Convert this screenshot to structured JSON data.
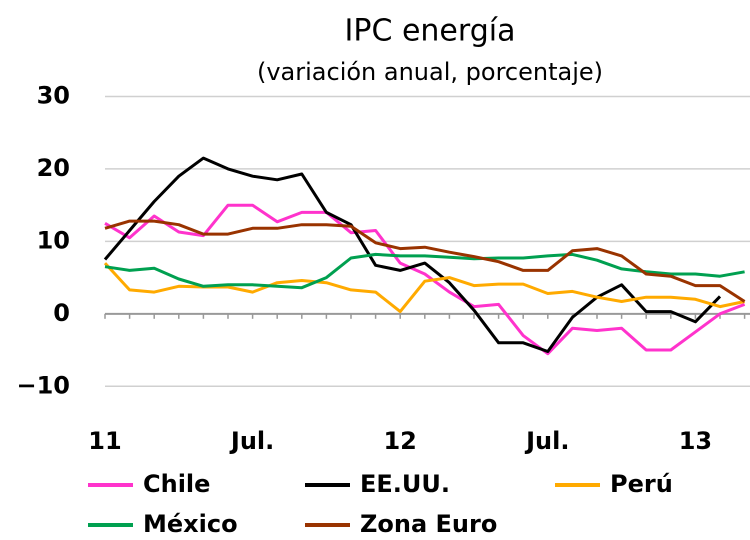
{
  "chart_data": {
    "type": "line",
    "title": "IPC energía",
    "subtitle": "(variación anual, porcentaje)",
    "categories": [
      "11",
      null,
      null,
      null,
      null,
      null,
      "Jul.",
      null,
      null,
      null,
      null,
      null,
      "12",
      null,
      null,
      null,
      null,
      null,
      "Jul.",
      null,
      null,
      null,
      null,
      null,
      "13",
      null,
      null
    ],
    "series": [
      {
        "name": "Chile",
        "color": "#ff33cc",
        "values": [
          12.5,
          10.5,
          13.5,
          11.3,
          10.8,
          15,
          15,
          12.7,
          14,
          14,
          11.2,
          11.5,
          7,
          5.5,
          3,
          1,
          1.3,
          -3,
          -5.5,
          -2,
          -2.3,
          -2,
          -5,
          -5,
          -2.5,
          0,
          1.3
        ]
      },
      {
        "name": "EE.UU.",
        "color": "#000000",
        "values": [
          7.5,
          11.5,
          15.5,
          19,
          21.5,
          20,
          19,
          18.5,
          19.3,
          14,
          12.3,
          6.7,
          6,
          7,
          4.3,
          0.5,
          -4,
          -4,
          -5.2,
          -0.5,
          2.3,
          4,
          0.3,
          0.3,
          -1.1,
          2.4,
          null
        ]
      },
      {
        "name": "Perú",
        "color": "#ffaa00",
        "values": [
          7,
          3.3,
          3,
          3.8,
          3.7,
          3.7,
          3,
          4.3,
          4.6,
          4.3,
          3.3,
          3,
          0.3,
          4.5,
          5,
          3.9,
          4.1,
          4.1,
          2.8,
          3.1,
          2.3,
          1.7,
          2.3,
          2.3,
          2,
          1,
          1.7
        ]
      },
      {
        "name": "México",
        "color": "#00a050",
        "values": [
          6.5,
          6,
          6.3,
          4.8,
          3.8,
          4,
          4,
          3.8,
          3.6,
          5,
          7.7,
          8.2,
          8,
          8,
          7.8,
          7.6,
          7.7,
          7.7,
          8,
          8.2,
          7.4,
          6.2,
          5.8,
          5.5,
          5.5,
          5.2,
          5.8
        ]
      },
      {
        "name": "Zona Euro",
        "color": "#993300",
        "values": [
          11.8,
          12.8,
          12.8,
          12.3,
          11,
          11,
          11.8,
          11.8,
          12.3,
          12.3,
          12.1,
          9.8,
          9,
          9.2,
          8.5,
          7.9,
          7.2,
          6,
          6,
          8.7,
          9,
          8,
          5.5,
          5.2,
          3.9,
          3.9,
          1.7
        ]
      }
    ],
    "ylim": [
      -13,
      32
    ],
    "yticks": [
      {
        "value": -10,
        "label": "−10"
      },
      0,
      10,
      20,
      30
    ],
    "grid": true
  }
}
